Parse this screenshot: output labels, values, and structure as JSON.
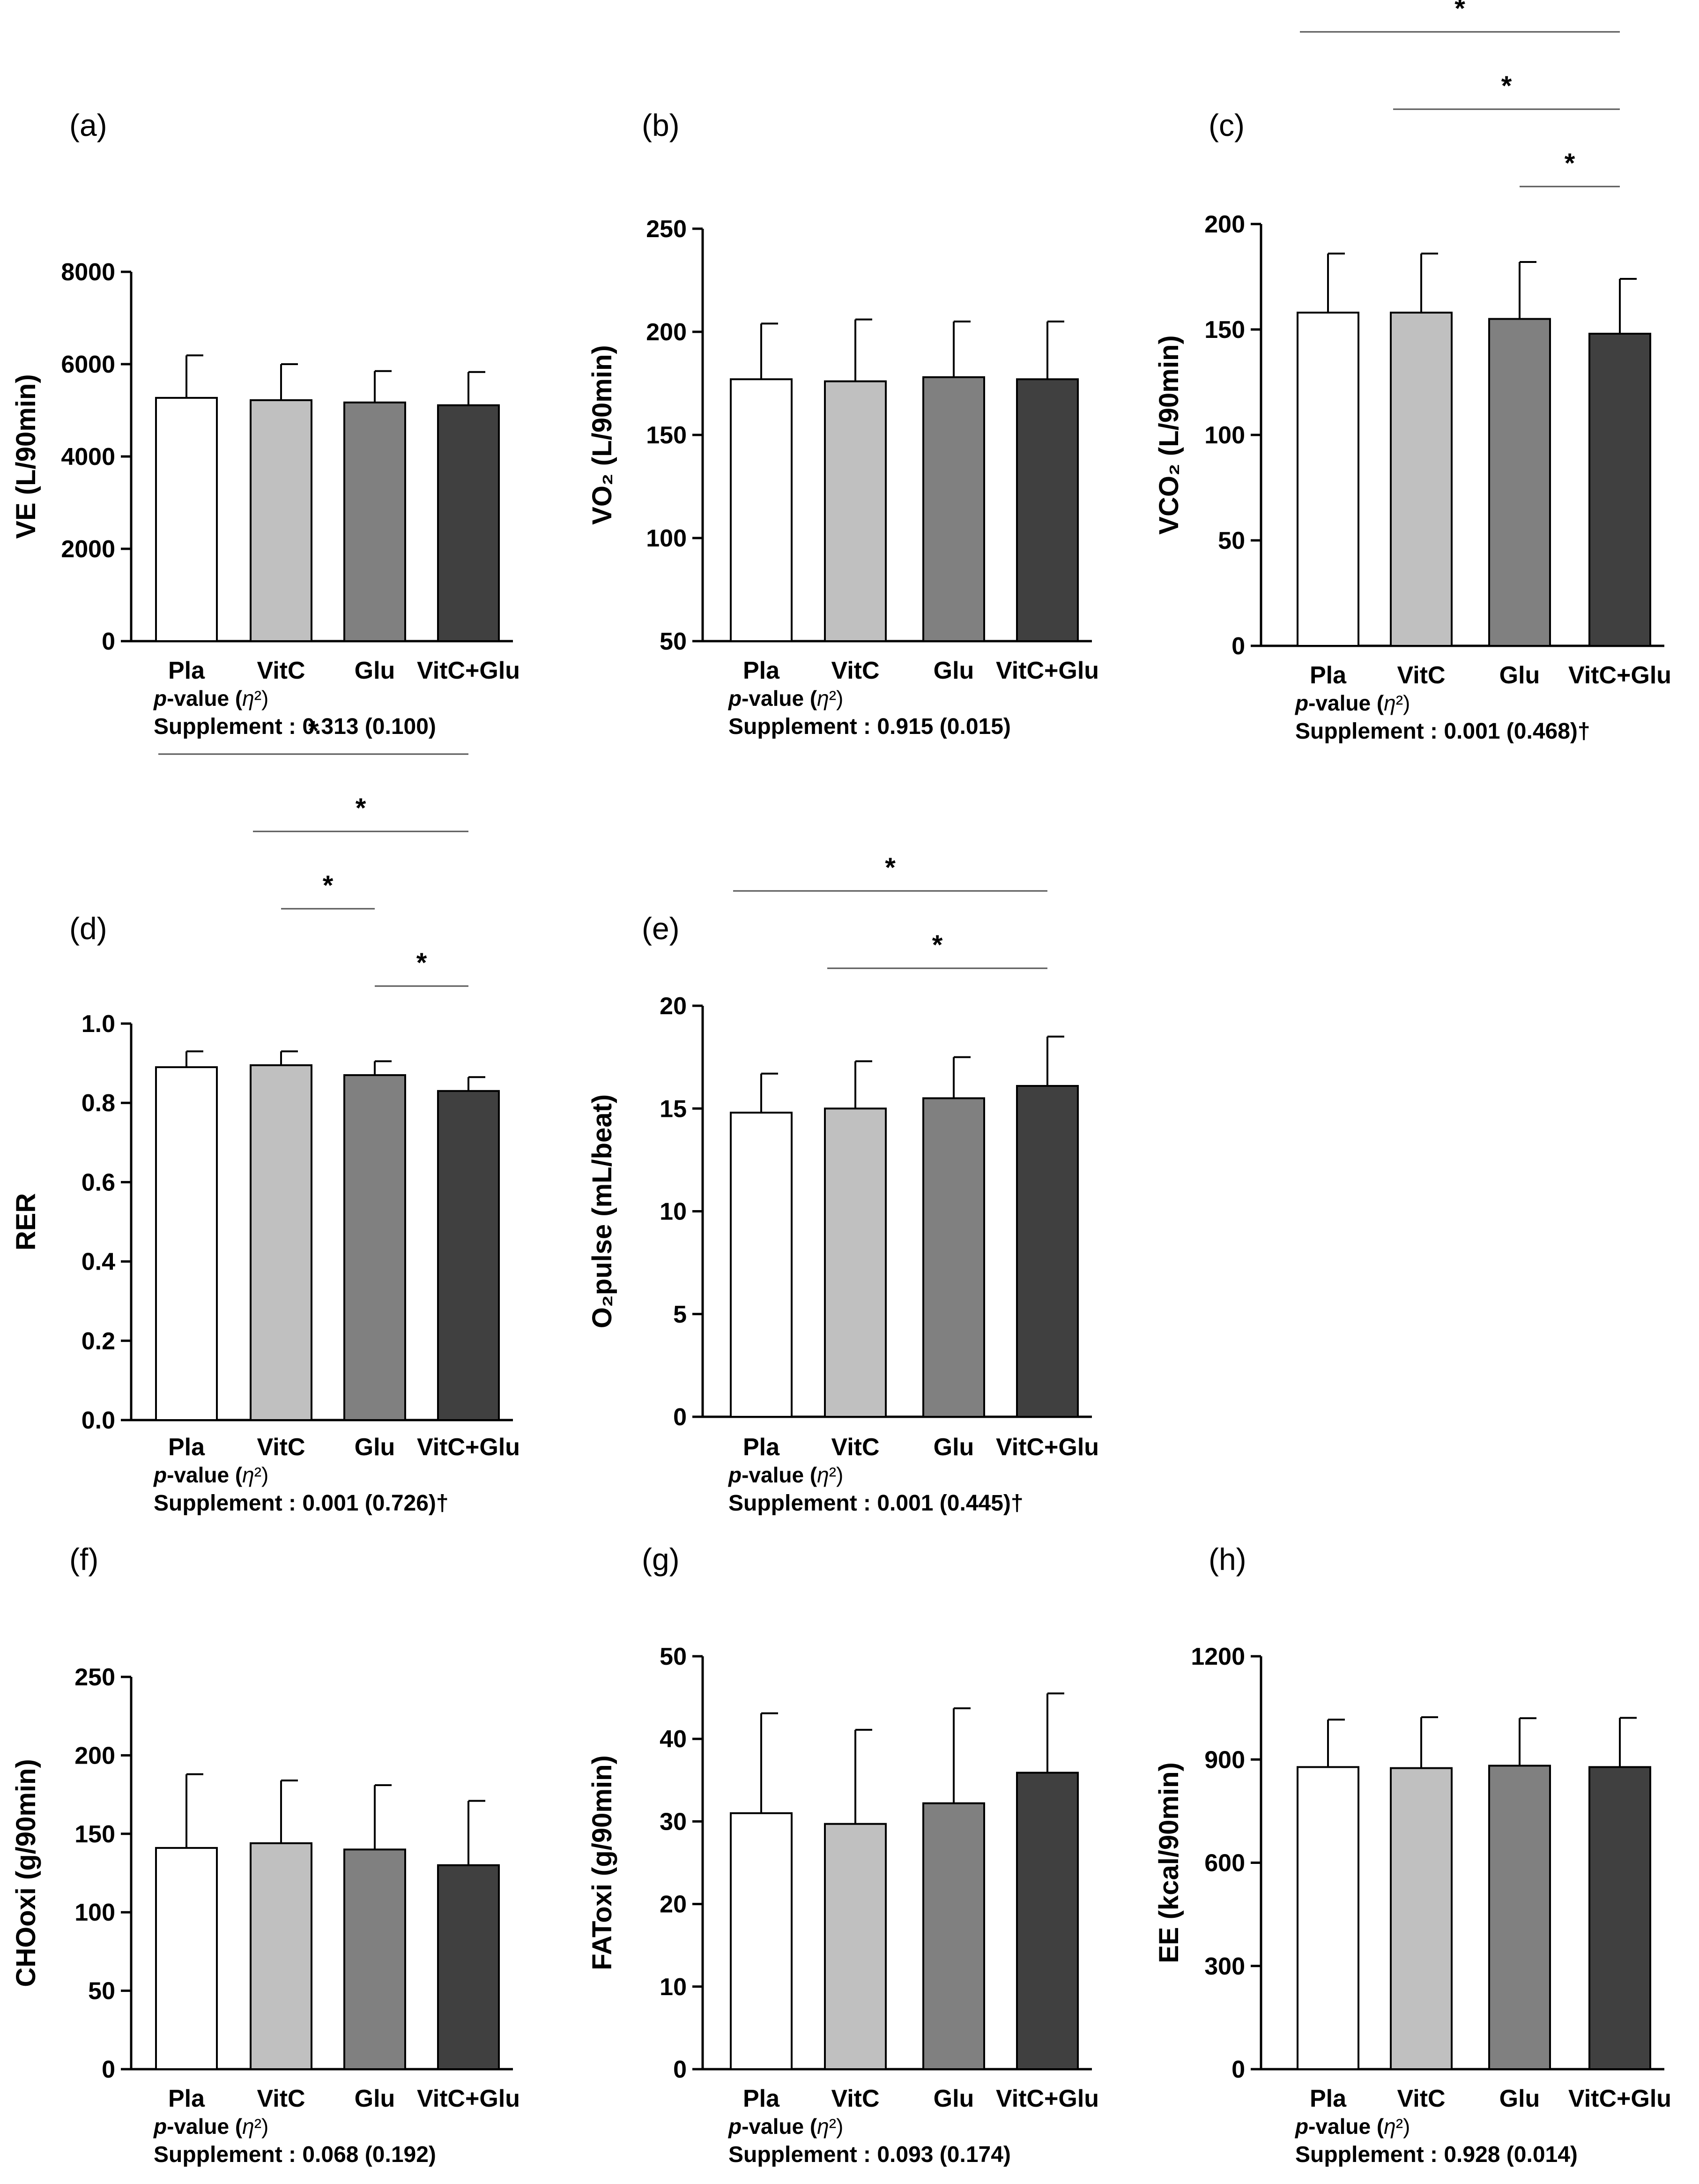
{
  "chart_data": [
    {
      "type": "bar",
      "panel": "(a)",
      "ylabel": "VE (L/90min)",
      "categories": [
        "Pla",
        "VitC",
        "Glu",
        "VitC+Glu"
      ],
      "values": [
        5270,
        5220,
        5170,
        5110
      ],
      "errors": [
        920,
        780,
        680,
        720
      ],
      "ylim": [
        0,
        8000
      ],
      "yticks": [
        "0",
        "2000",
        "4000",
        "6000",
        "8000"
      ],
      "pvalue_header": "p-value (η²)",
      "stat": "Supplement : 0.313 (0.100)",
      "significance": []
    },
    {
      "type": "bar",
      "panel": "(b)",
      "ylabel": "VO₂ (L/90min)",
      "categories": [
        "Pla",
        "VitC",
        "Glu",
        "VitC+Glu"
      ],
      "values": [
        177,
        176,
        178,
        177
      ],
      "errors": [
        27,
        30,
        27,
        28
      ],
      "ylim": [
        50,
        250
      ],
      "yticks": [
        "50",
        "100",
        "150",
        "200",
        "250"
      ],
      "pvalue_header": "p-value (η²)",
      "stat": "Supplement : 0.915 (0.015)",
      "significance": []
    },
    {
      "type": "bar",
      "panel": "(c)",
      "ylabel": "VCO₂ (L/90min)",
      "categories": [
        "Pla",
        "VitC",
        "Glu",
        "VitC+Glu"
      ],
      "values": [
        158,
        158,
        155,
        148
      ],
      "errors": [
        28,
        28,
        27,
        26
      ],
      "ylim": [
        0,
        200
      ],
      "yticks": [
        "0",
        "50",
        "100",
        "150",
        "200"
      ],
      "pvalue_header": "p-value (η²)",
      "stat": "Supplement : 0.001 (0.468)†",
      "significance": [
        {
          "from": 0,
          "to": 3,
          "label": "*"
        },
        {
          "from": 1,
          "to": 3,
          "label": "*"
        },
        {
          "from": 2,
          "to": 3,
          "label": "*"
        }
      ]
    },
    {
      "type": "bar",
      "panel": "(d)",
      "ylabel": "RER",
      "categories": [
        "Pla",
        "VitC",
        "Glu",
        "VitC+Glu"
      ],
      "values": [
        0.89,
        0.895,
        0.87,
        0.83
      ],
      "errors": [
        0.04,
        0.035,
        0.035,
        0.035
      ],
      "ylim": [
        0,
        1.0
      ],
      "yticks": [
        "0.0",
        "0.2",
        "0.4",
        "0.6",
        "0.8",
        "1.0"
      ],
      "pvalue_header": "p-value (η²)",
      "stat": "Supplement : 0.001 (0.726)†",
      "significance": [
        {
          "from": 0,
          "to": 3,
          "label": "*"
        },
        {
          "from": 1,
          "to": 3,
          "label": "*"
        },
        {
          "from": 1,
          "to": 2,
          "label": "*"
        },
        {
          "from": 2,
          "to": 3,
          "label": "*"
        }
      ]
    },
    {
      "type": "bar",
      "panel": "(e)",
      "ylabel": "O₂pulse (mL/beat)",
      "categories": [
        "Pla",
        "VitC",
        "Glu",
        "VitC+Glu"
      ],
      "values": [
        14.8,
        15.0,
        15.5,
        16.1
      ],
      "errors": [
        1.9,
        2.3,
        2.0,
        2.4
      ],
      "ylim": [
        0,
        20
      ],
      "yticks": [
        "0",
        "5",
        "10",
        "15",
        "20"
      ],
      "pvalue_header": "p-value (η²)",
      "stat": "Supplement : 0.001 (0.445)†",
      "significance": [
        {
          "from": 0,
          "to": 3,
          "label": "*"
        },
        {
          "from": 1,
          "to": 3,
          "label": "*"
        }
      ]
    },
    {
      "type": "bar",
      "panel": "(f)",
      "ylabel": "CHOoxi (g/90min)",
      "categories": [
        "Pla",
        "VitC",
        "Glu",
        "VitC+Glu"
      ],
      "values": [
        141,
        144,
        140,
        130
      ],
      "errors": [
        47,
        40,
        41,
        41
      ],
      "ylim": [
        0,
        250
      ],
      "yticks": [
        "0",
        "50",
        "100",
        "150",
        "200",
        "250"
      ],
      "pvalue_header": "p-value (η²)",
      "stat": "Supplement : 0.068 (0.192)",
      "significance": []
    },
    {
      "type": "bar",
      "panel": "(g)",
      "ylabel": "FAToxi (g/90min)",
      "categories": [
        "Pla",
        "VitC",
        "Glu",
        "VitC+Glu"
      ],
      "values": [
        31.0,
        29.7,
        32.2,
        35.9
      ],
      "errors": [
        12.1,
        11.4,
        11.5,
        9.6
      ],
      "ylim": [
        0,
        50
      ],
      "yticks": [
        "0",
        "10",
        "20",
        "30",
        "40",
        "50"
      ],
      "pvalue_header": "p-value (η²)",
      "stat": "Supplement : 0.093 (0.174)",
      "significance": []
    },
    {
      "type": "bar",
      "panel": "(h)",
      "ylabel": "EE (kcal/90min)",
      "categories": [
        "Pla",
        "VitC",
        "Glu",
        "VitC+Glu"
      ],
      "values": [
        878,
        875,
        882,
        878
      ],
      "errors": [
        138,
        148,
        138,
        143
      ],
      "ylim": [
        0,
        1200
      ],
      "yticks": [
        "0",
        "300",
        "600",
        "900",
        "1200"
      ],
      "pvalue_header": "p-value (η²)",
      "stat": "Supplement : 0.928 (0.014)",
      "significance": []
    }
  ],
  "colors": {
    "bars": [
      "#ffffff",
      "#c0c0c0",
      "#808080",
      "#404040"
    ],
    "axis": "#000000",
    "sig_line": "#555555"
  }
}
